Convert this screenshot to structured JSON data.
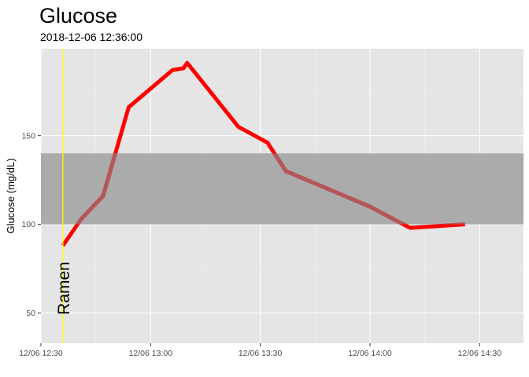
{
  "chart_data": {
    "type": "line",
    "title": "Glucose",
    "subtitle": "2018-12-06 12:36:00",
    "xlabel": "",
    "ylabel": "Glucose (mg/dL)",
    "x_axis": {
      "type": "datetime",
      "range": [
        "2018-12-06 12:30",
        "2018-12-06 14:42"
      ],
      "ticks": [
        {
          "value": "2018-12-06 12:30",
          "label": "12/06 12:30"
        },
        {
          "value": "2018-12-06 13:00",
          "label": "12/06 13:00"
        },
        {
          "value": "2018-12-06 13:30",
          "label": "12/06 13:30"
        },
        {
          "value": "2018-12-06 14:00",
          "label": "12/06 14:00"
        },
        {
          "value": "2018-12-06 14:30",
          "label": "12/06 14:30"
        }
      ]
    },
    "y_axis": {
      "range": [
        33,
        199
      ],
      "ticks": [
        50,
        100,
        150
      ]
    },
    "grid": true,
    "legend": "none",
    "target_band": {
      "from": 100,
      "to": 140,
      "color": "#ababab"
    },
    "series": [
      {
        "color": "#ff0000",
        "in_band_color": "#b3585a",
        "points": [
          {
            "x": "2018-12-06 12:36",
            "y": 88
          },
          {
            "x": "2018-12-06 12:41",
            "y": 103
          },
          {
            "x": "2018-12-06 12:47",
            "y": 116
          },
          {
            "x": "2018-12-06 12:54",
            "y": 166
          },
          {
            "x": "2018-12-06 13:06",
            "y": 187
          },
          {
            "x": "2018-12-06 13:09",
            "y": 188
          },
          {
            "x": "2018-12-06 13:10",
            "y": 191
          },
          {
            "x": "2018-12-06 13:24",
            "y": 155
          },
          {
            "x": "2018-12-06 13:32",
            "y": 146
          },
          {
            "x": "2018-12-06 13:37",
            "y": 130
          },
          {
            "x": "2018-12-06 14:00",
            "y": 110
          },
          {
            "x": "2018-12-06 14:11",
            "y": 98
          },
          {
            "x": "2018-12-06 14:26",
            "y": 100
          }
        ]
      }
    ],
    "annotations": [
      {
        "x": "2018-12-06 12:36",
        "label": "Ramen",
        "line_color": "#ffff00"
      }
    ]
  }
}
